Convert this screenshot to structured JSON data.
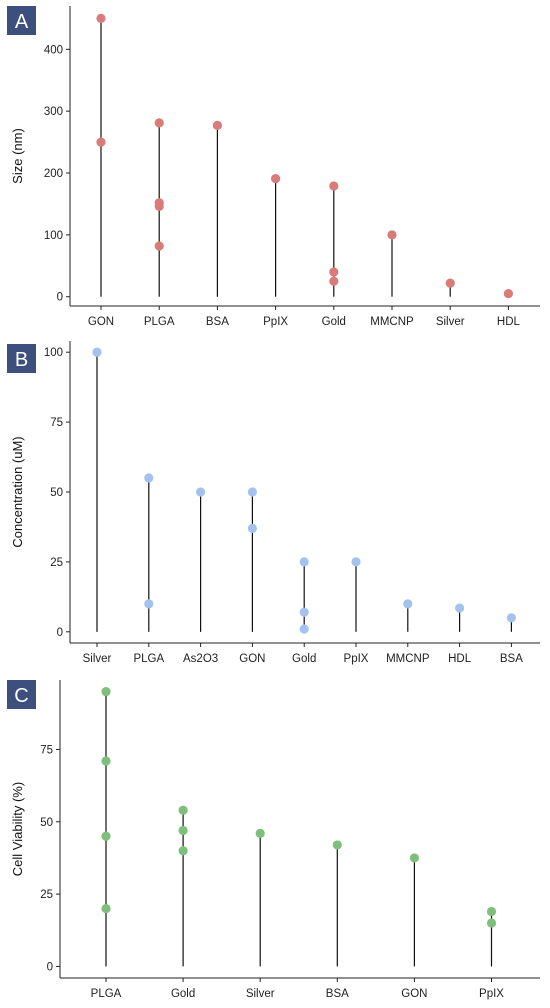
{
  "colors": {
    "badge": "#3d4f7c",
    "axis": "#222222",
    "stem": "#111111"
  },
  "chart_data": [
    {
      "type": "scatter",
      "panel_label": "A",
      "ylabel": "Size (nm)",
      "xlabel": "",
      "ylim": [
        -15,
        470
      ],
      "yticks": [
        0,
        100,
        200,
        300,
        400
      ],
      "point_color": "#d97b78",
      "categories": [
        "GON",
        "PLGA",
        "BSA",
        "PpIX",
        "Gold",
        "MMCNP",
        "Silver",
        "HDL"
      ],
      "points": [
        {
          "category": "GON",
          "values": [
            450,
            250
          ]
        },
        {
          "category": "PLGA",
          "values": [
            281,
            152,
            146,
            82
          ]
        },
        {
          "category": "BSA",
          "values": [
            277
          ]
        },
        {
          "category": "PpIX",
          "values": [
            191
          ]
        },
        {
          "category": "Gold",
          "values": [
            179,
            40,
            25
          ]
        },
        {
          "category": "MMCNP",
          "values": [
            100
          ]
        },
        {
          "category": "Silver",
          "values": [
            22
          ]
        },
        {
          "category": "HDL",
          "values": [
            5
          ]
        }
      ]
    },
    {
      "type": "scatter",
      "panel_label": "B",
      "ylabel": "Concentration (uM)",
      "xlabel": "",
      "ylim": [
        -4,
        104
      ],
      "yticks": [
        0,
        25,
        50,
        75,
        100
      ],
      "point_color": "#a4c2ee",
      "categories": [
        "Silver",
        "PLGA",
        "As2O3",
        "GON",
        "Gold",
        "PpIX",
        "MMCNP",
        "HDL",
        "BSA"
      ],
      "points": [
        {
          "category": "Silver",
          "values": [
            100
          ]
        },
        {
          "category": "PLGA",
          "values": [
            55,
            10
          ]
        },
        {
          "category": "As2O3",
          "values": [
            50
          ]
        },
        {
          "category": "GON",
          "values": [
            50,
            37
          ]
        },
        {
          "category": "Gold",
          "values": [
            25,
            7,
            1
          ]
        },
        {
          "category": "PpIX",
          "values": [
            25
          ]
        },
        {
          "category": "MMCNP",
          "values": [
            10
          ]
        },
        {
          "category": "HDL",
          "values": [
            8.5
          ]
        },
        {
          "category": "BSA",
          "values": [
            5
          ]
        }
      ]
    },
    {
      "type": "scatter",
      "panel_label": "C",
      "ylabel": "Cell Viability (%)",
      "xlabel": "",
      "ylim": [
        -4,
        99
      ],
      "yticks": [
        0,
        25,
        50,
        75
      ],
      "point_color": "#7dbf7b",
      "categories": [
        "PLGA",
        "Gold",
        "Silver",
        "BSA",
        "GON",
        "PpIX"
      ],
      "points": [
        {
          "category": "PLGA",
          "values": [
            95,
            71,
            45,
            20
          ]
        },
        {
          "category": "Gold",
          "values": [
            54,
            47,
            40
          ]
        },
        {
          "category": "Silver",
          "values": [
            46
          ]
        },
        {
          "category": "BSA",
          "values": [
            42
          ]
        },
        {
          "category": "GON",
          "values": [
            37.5
          ]
        },
        {
          "category": "PpIX",
          "values": [
            19,
            15
          ]
        }
      ]
    }
  ]
}
